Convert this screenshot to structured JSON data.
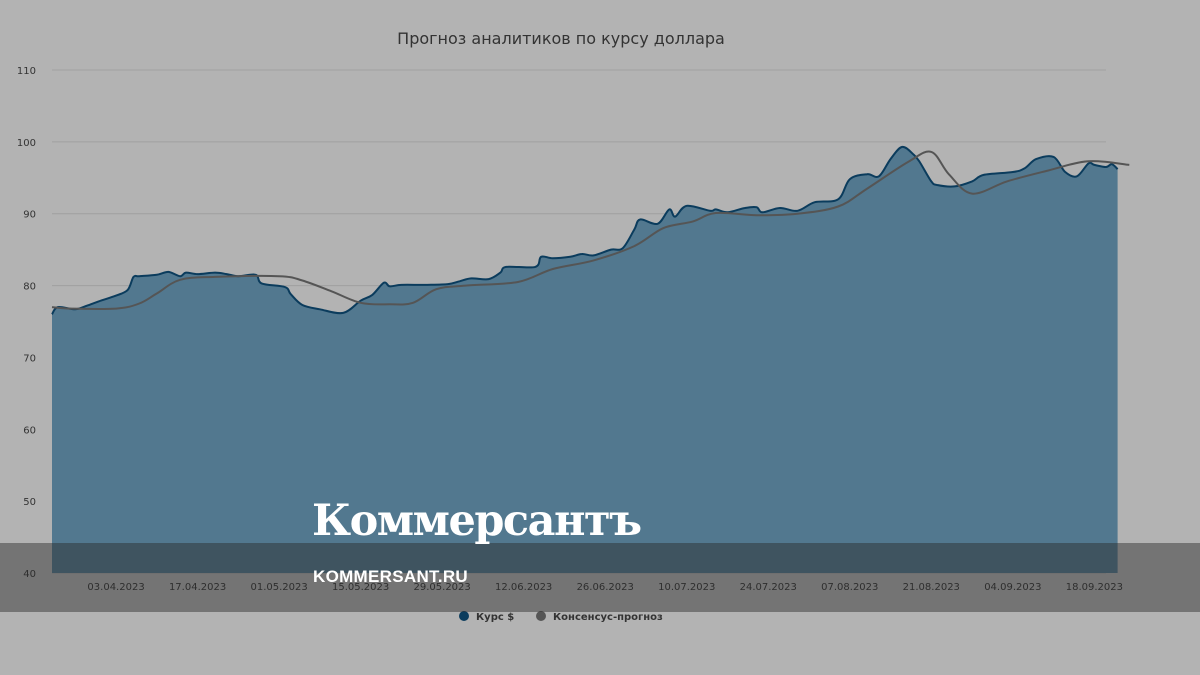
{
  "chart_data": {
    "type": "area",
    "title": "Прогноз аналитиков по курсу доллара",
    "xlabel": "",
    "ylabel": "",
    "ylim": [
      40,
      110
    ],
    "y_ticks": [
      "40",
      "50",
      "60",
      "70",
      "80",
      "90",
      "100",
      "110"
    ],
    "x_ticks": [
      "03.04.2023",
      "17.04.2023",
      "01.05.2023",
      "15.05.2023",
      "29.05.2023",
      "12.06.2023",
      "26.06.2023",
      "10.07.2023",
      "24.07.2023",
      "07.08.2023",
      "21.08.2023",
      "04.09.2023",
      "18.09.2023"
    ],
    "x_range": [
      "2023-03-23",
      "2023-09-20"
    ],
    "grid": true,
    "legend_position": "bottom",
    "series": [
      {
        "name": "Курс $",
        "kind": "area",
        "color": "#52788f",
        "line_color": "#0b3c5d",
        "points": [
          [
            "2023-03-23",
            76.0
          ],
          [
            "2023-03-24",
            77.0
          ],
          [
            "2023-03-27",
            76.7
          ],
          [
            "2023-03-29",
            77.2
          ],
          [
            "2023-03-31",
            77.8
          ],
          [
            "2023-04-03",
            78.6
          ],
          [
            "2023-04-05",
            79.4
          ],
          [
            "2023-04-06",
            81.2
          ],
          [
            "2023-04-07",
            81.3
          ],
          [
            "2023-04-10",
            81.5
          ],
          [
            "2023-04-12",
            81.9
          ],
          [
            "2023-04-14",
            81.3
          ],
          [
            "2023-04-15",
            81.8
          ],
          [
            "2023-04-17",
            81.6
          ],
          [
            "2023-04-20",
            81.8
          ],
          [
            "2023-04-22",
            81.6
          ],
          [
            "2023-04-24",
            81.3
          ],
          [
            "2023-04-27",
            81.5
          ],
          [
            "2023-04-28",
            80.3
          ],
          [
            "2023-05-02",
            79.8
          ],
          [
            "2023-05-03",
            78.8
          ],
          [
            "2023-05-05",
            77.3
          ],
          [
            "2023-05-08",
            76.7
          ],
          [
            "2023-05-12",
            76.2
          ],
          [
            "2023-05-15",
            77.9
          ],
          [
            "2023-05-17",
            78.7
          ],
          [
            "2023-05-19",
            80.4
          ],
          [
            "2023-05-20",
            79.9
          ],
          [
            "2023-05-22",
            80.1
          ],
          [
            "2023-05-26",
            80.1
          ],
          [
            "2023-05-30",
            80.2
          ],
          [
            "2023-06-01",
            80.6
          ],
          [
            "2023-06-03",
            81.0
          ],
          [
            "2023-06-06",
            80.9
          ],
          [
            "2023-06-08",
            81.8
          ],
          [
            "2023-06-09",
            82.6
          ],
          [
            "2023-06-14",
            82.6
          ],
          [
            "2023-06-15",
            84.0
          ],
          [
            "2023-06-17",
            83.8
          ],
          [
            "2023-06-20",
            84.0
          ],
          [
            "2023-06-22",
            84.4
          ],
          [
            "2023-06-24",
            84.2
          ],
          [
            "2023-06-27",
            85.0
          ],
          [
            "2023-06-29",
            85.2
          ],
          [
            "2023-07-01",
            87.8
          ],
          [
            "2023-07-02",
            89.2
          ],
          [
            "2023-07-05",
            88.6
          ],
          [
            "2023-07-07",
            90.6
          ],
          [
            "2023-07-08",
            89.6
          ],
          [
            "2023-07-10",
            91.1
          ],
          [
            "2023-07-14",
            90.4
          ],
          [
            "2023-07-15",
            90.6
          ],
          [
            "2023-07-17",
            90.2
          ],
          [
            "2023-07-20",
            90.8
          ],
          [
            "2023-07-22",
            90.9
          ],
          [
            "2023-07-23",
            90.2
          ],
          [
            "2023-07-26",
            90.8
          ],
          [
            "2023-07-29",
            90.4
          ],
          [
            "2023-08-01",
            91.6
          ],
          [
            "2023-08-05",
            92.0
          ],
          [
            "2023-08-07",
            94.8
          ],
          [
            "2023-08-10",
            95.5
          ],
          [
            "2023-08-12",
            95.2
          ],
          [
            "2023-08-14",
            97.6
          ],
          [
            "2023-08-16",
            99.3
          ],
          [
            "2023-08-18",
            98.2
          ],
          [
            "2023-08-19",
            97.2
          ],
          [
            "2023-08-21",
            94.5
          ],
          [
            "2023-08-22",
            94.0
          ],
          [
            "2023-08-25",
            93.8
          ],
          [
            "2023-08-28",
            94.5
          ],
          [
            "2023-08-30",
            95.4
          ],
          [
            "2023-09-04",
            95.8
          ],
          [
            "2023-09-06",
            96.3
          ],
          [
            "2023-09-08",
            97.6
          ],
          [
            "2023-09-11",
            97.9
          ],
          [
            "2023-09-13",
            95.8
          ],
          [
            "2023-09-15",
            95.2
          ],
          [
            "2023-09-17",
            97.0
          ],
          [
            "2023-09-18",
            96.8
          ],
          [
            "2023-09-20",
            96.5
          ],
          [
            "2023-09-21",
            96.9
          ],
          [
            "2023-09-22",
            96.2
          ]
        ]
      },
      {
        "name": "Консенсус-прогноз",
        "kind": "line",
        "color": "#555555",
        "points": [
          [
            "2023-03-23",
            77.0
          ],
          [
            "2023-03-26",
            76.8
          ],
          [
            "2023-04-03",
            76.8
          ],
          [
            "2023-04-07",
            77.5
          ],
          [
            "2023-04-10",
            78.9
          ],
          [
            "2023-04-14",
            80.8
          ],
          [
            "2023-04-20",
            81.2
          ],
          [
            "2023-05-01",
            81.3
          ],
          [
            "2023-05-05",
            80.7
          ],
          [
            "2023-05-10",
            79.2
          ],
          [
            "2023-05-15",
            77.6
          ],
          [
            "2023-05-20",
            77.4
          ],
          [
            "2023-05-24",
            77.6
          ],
          [
            "2023-05-28",
            79.5
          ],
          [
            "2023-06-02",
            80.0
          ],
          [
            "2023-06-11",
            80.5
          ],
          [
            "2023-06-17",
            82.3
          ],
          [
            "2023-06-24",
            83.5
          ],
          [
            "2023-07-01",
            85.5
          ],
          [
            "2023-07-06",
            88.0
          ],
          [
            "2023-07-11",
            88.9
          ],
          [
            "2023-07-15",
            90.1
          ],
          [
            "2023-07-22",
            89.8
          ],
          [
            "2023-07-29",
            90.0
          ],
          [
            "2023-08-05",
            91.0
          ],
          [
            "2023-08-10",
            93.5
          ],
          [
            "2023-08-17",
            97.2
          ],
          [
            "2023-08-21",
            98.6
          ],
          [
            "2023-08-24",
            95.5
          ],
          [
            "2023-08-28",
            92.8
          ],
          [
            "2023-09-03",
            94.5
          ],
          [
            "2023-09-10",
            96.0
          ],
          [
            "2023-09-17",
            97.3
          ],
          [
            "2023-09-24",
            96.8
          ]
        ]
      }
    ]
  },
  "watermark": {
    "logo": "Коммерсантъ",
    "url": "KOMMERSANT.RU"
  }
}
